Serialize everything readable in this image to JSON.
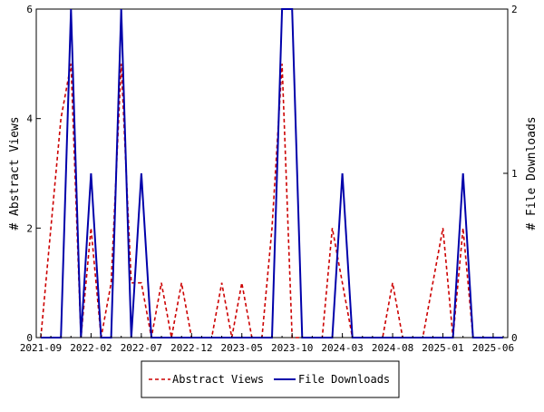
{
  "chart_data": {
    "type": "line",
    "title": "",
    "xlabel": "",
    "ylabel": "# Abstract Views",
    "ylabel_right": "# File Downloads",
    "ylim": [
      0,
      6
    ],
    "ylim_right": [
      0,
      2
    ],
    "yticks": [
      "0",
      "2",
      "4",
      "6"
    ],
    "yticks_right": [
      "0",
      "1",
      "2"
    ],
    "xticks": [
      "2021-09",
      "2022-02",
      "2022-07",
      "2022-12",
      "2023-05",
      "2023-10",
      "2024-03",
      "2024-08",
      "2025-01",
      "2025-06"
    ],
    "grid": false,
    "legend_position": "bottom",
    "x": [
      "2021-09",
      "2021-10",
      "2021-11",
      "2021-12",
      "2022-01",
      "2022-02",
      "2022-03",
      "2022-04",
      "2022-05",
      "2022-06",
      "2022-07",
      "2022-08",
      "2022-09",
      "2022-10",
      "2022-11",
      "2022-12",
      "2023-01",
      "2023-02",
      "2023-03",
      "2023-04",
      "2023-05",
      "2023-06",
      "2023-07",
      "2023-08",
      "2023-09",
      "2023-10",
      "2023-11",
      "2023-12",
      "2024-01",
      "2024-02",
      "2024-03",
      "2024-04",
      "2024-05",
      "2024-06",
      "2024-07",
      "2024-08",
      "2024-09",
      "2024-10",
      "2024-11",
      "2024-12",
      "2025-01",
      "2025-02",
      "2025-03",
      "2025-04",
      "2025-05",
      "2025-06",
      "2025-07"
    ],
    "series": [
      {
        "name": "Abstract Views",
        "axis": "left",
        "color": "#cc0000",
        "dash": "dashed",
        "values": [
          0,
          2,
          4,
          5,
          0,
          2,
          0,
          1,
          5,
          1,
          1,
          0,
          1,
          0,
          1,
          0,
          0,
          0,
          1,
          0,
          1,
          0,
          0,
          2,
          5,
          0,
          0,
          0,
          0,
          2,
          1,
          0,
          0,
          0,
          0,
          1,
          0,
          0,
          0,
          1,
          2,
          0,
          2,
          0,
          0,
          0,
          0
        ]
      },
      {
        "name": "File Downloads",
        "axis": "right",
        "color": "#0000aa",
        "dash": "solid",
        "values": [
          0,
          0,
          0,
          2,
          0,
          1,
          0,
          0,
          2,
          0,
          1,
          0,
          0,
          0,
          0,
          0,
          0,
          0,
          0,
          0,
          0,
          0,
          0,
          0,
          2,
          2,
          0,
          0,
          0,
          0,
          1,
          0,
          0,
          0,
          0,
          0,
          0,
          0,
          0,
          0,
          0,
          0,
          1,
          0,
          0,
          0,
          0
        ]
      }
    ]
  }
}
